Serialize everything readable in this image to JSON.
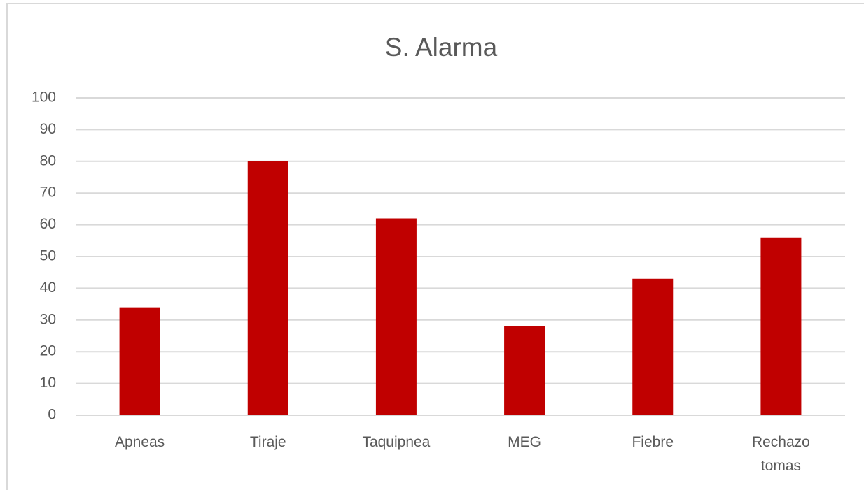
{
  "chart_data": {
    "type": "bar",
    "title": "S. Alarma",
    "categories": [
      "Apneas",
      "Tiraje",
      "Taquipnea",
      "MEG",
      "Fiebre",
      "Rechazo tomas"
    ],
    "values": [
      34,
      80,
      62,
      28,
      43,
      56
    ],
    "color": "#c00000",
    "ylim": [
      0,
      100
    ],
    "yticks": [
      0,
      10,
      20,
      30,
      40,
      50,
      60,
      70,
      80,
      90,
      100
    ],
    "grid": true
  }
}
